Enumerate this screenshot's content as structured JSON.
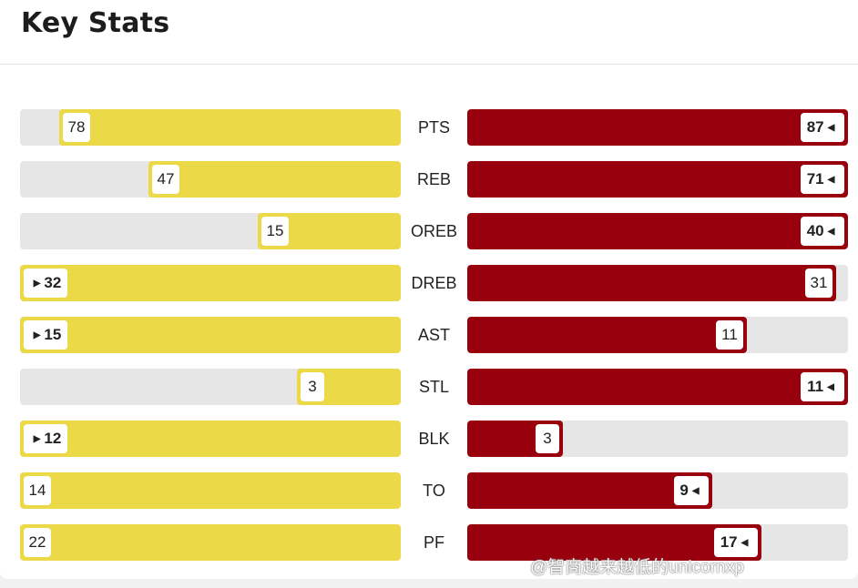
{
  "header": {
    "title": "Key Stats"
  },
  "colors": {
    "left_team": "#ecd948",
    "right_team": "#99000e",
    "track": "#e6e6e6"
  },
  "chart_data": {
    "type": "bar",
    "categories": [
      "PTS",
      "REB",
      "OREB",
      "DREB",
      "AST",
      "STL",
      "BLK",
      "TO",
      "PF"
    ],
    "series": [
      {
        "values": [
          78,
          47,
          15,
          32,
          15,
          3,
          12,
          14,
          22
        ]
      },
      {
        "values": [
          87,
          71,
          40,
          31,
          11,
          11,
          3,
          9,
          17
        ]
      }
    ],
    "leader_marked": [
      "right",
      "right",
      "right",
      "left",
      "left",
      "right",
      "left",
      "right",
      "right"
    ]
  },
  "watermark": "@智商越来越低的unicornxp"
}
